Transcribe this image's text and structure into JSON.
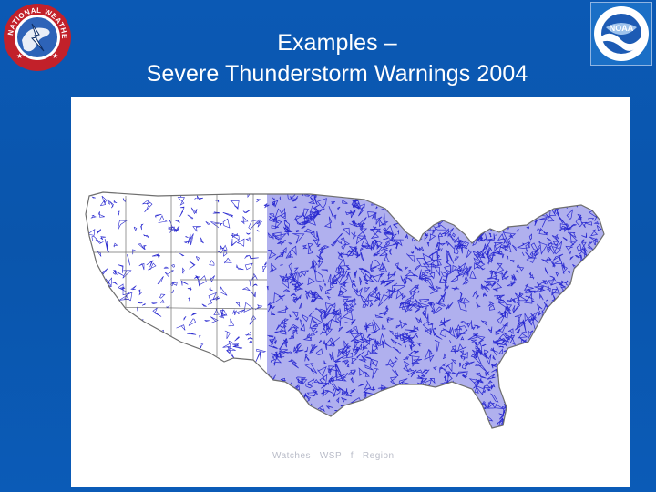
{
  "slide": {
    "title_line1": "Examples –",
    "title_line2": "Severe Thunderstorm Warnings 2004"
  },
  "logos": {
    "nws_text": "NATIONAL WEATHER SERVICE",
    "noaa_text": "NOAA",
    "nws_icon": "nws-seal-icon",
    "noaa_icon": "noaa-seal-icon"
  },
  "map": {
    "label": "Watches   WSP   f   Region",
    "warning_color": "#2a2ad0",
    "border_color": "#6e6e6e",
    "background_color": "#ffffff"
  }
}
